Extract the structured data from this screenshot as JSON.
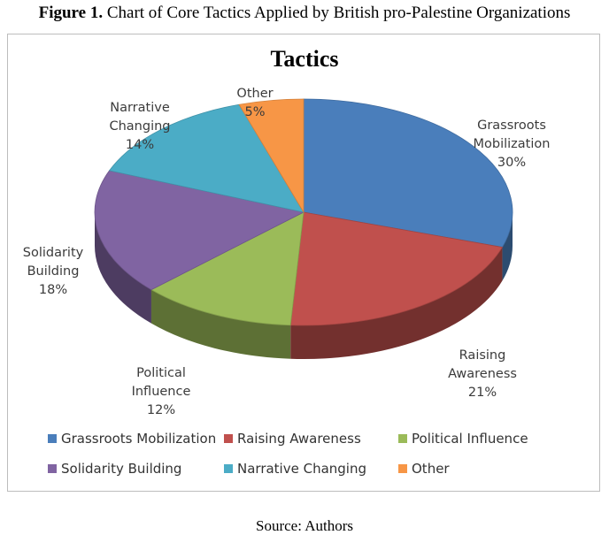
{
  "figure": {
    "label": "Figure 1.",
    "caption": "Chart of Core Tactics Applied by British pro-Palestine Organizations",
    "source": "Source: Authors"
  },
  "chart_data": {
    "type": "pie",
    "title": "Tactics",
    "legend_position": "bottom",
    "slices": [
      {
        "label": "Grassroots Mobilization",
        "value": 30,
        "percent_label": "30%",
        "color": "#4a7ebb"
      },
      {
        "label": "Raising Awareness",
        "value": 21,
        "percent_label": "21%",
        "color": "#c0504d"
      },
      {
        "label": "Political Influence",
        "value": 12,
        "percent_label": "12%",
        "color": "#9bbb59"
      },
      {
        "label": "Solidarity Building",
        "value": 18,
        "percent_label": "18%",
        "color": "#8064a2"
      },
      {
        "label": "Narrative Changing",
        "value": 14,
        "percent_label": "14%",
        "color": "#4bacc6"
      },
      {
        "label": "Other",
        "value": 5,
        "percent_label": "5%",
        "color": "#f79646"
      }
    ],
    "data_labels": [
      {
        "lines": [
          "Grassroots",
          "Mobilization",
          "30%"
        ]
      },
      {
        "lines": [
          "Raising",
          "Awareness",
          "21%"
        ]
      },
      {
        "lines": [
          "Political",
          "Influence",
          "12%"
        ]
      },
      {
        "lines": [
          "Solidarity",
          "Building",
          "18%"
        ]
      },
      {
        "lines": [
          "Narrative",
          "Changing",
          "14%"
        ]
      },
      {
        "lines": [
          "Other",
          "5%"
        ]
      }
    ]
  }
}
